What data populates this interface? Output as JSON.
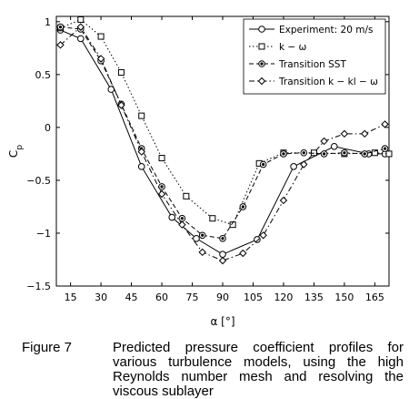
{
  "chart_data": {
    "type": "line",
    "xlabel": "α [°]",
    "ylabel": "C_p",
    "xlim": [
      8,
      172
    ],
    "ylim": [
      -1.5,
      1.05
    ],
    "x_ticks": [
      15,
      30,
      45,
      60,
      75,
      90,
      105,
      120,
      135,
      150,
      165
    ],
    "y_ticks": [
      1,
      0.5,
      0,
      -0.5,
      -1,
      -1.5
    ],
    "y_tick_labels": [
      "1",
      "0.5",
      "0",
      "−0.5",
      "−1",
      "−1.5"
    ],
    "legend_position": "top-right",
    "grid": false,
    "series": [
      {
        "name": "Experiment: 20 m/s",
        "marker": "circle",
        "line": "solid",
        "x": [
          10,
          20,
          35,
          50,
          65,
          77,
          90,
          107,
          125,
          145,
          162,
          170
        ],
        "y": [
          0.92,
          0.84,
          0.36,
          -0.37,
          -0.85,
          -1.05,
          -1.2,
          -1.06,
          -0.37,
          -0.18,
          -0.25,
          -0.25
        ]
      },
      {
        "name": "k − ω",
        "marker": "square",
        "line": "dotted",
        "x": [
          10,
          20,
          30,
          40,
          50,
          60,
          72,
          85,
          95,
          108,
          120,
          135,
          150,
          165,
          172
        ],
        "y": [
          0.94,
          1.02,
          0.86,
          0.52,
          0.11,
          -0.29,
          -0.65,
          -0.86,
          -0.92,
          -0.34,
          -0.24,
          -0.24,
          -0.25,
          -0.24,
          -0.25
        ]
      },
      {
        "name": "Transition SST",
        "marker": "circle-dot",
        "line": "dashed",
        "x": [
          10,
          20,
          30,
          40,
          50,
          60,
          70,
          80,
          90,
          100,
          110,
          120,
          130,
          140,
          150,
          160,
          170
        ],
        "y": [
          0.95,
          0.93,
          0.63,
          0.22,
          -0.2,
          -0.56,
          -0.86,
          -1.02,
          -1.05,
          -0.75,
          -0.35,
          -0.25,
          -0.24,
          -0.25,
          -0.24,
          -0.25,
          -0.2
        ]
      },
      {
        "name": "Transition k − kl − ω",
        "marker": "diamond",
        "line": "dash-dot",
        "x": [
          10,
          20,
          30,
          40,
          50,
          60,
          70,
          80,
          90,
          100,
          110,
          120,
          130,
          140,
          150,
          160,
          170
        ],
        "y": [
          0.78,
          0.95,
          0.65,
          0.21,
          -0.23,
          -0.63,
          -0.92,
          -1.18,
          -1.26,
          -1.19,
          -1.02,
          -0.69,
          -0.35,
          -0.13,
          -0.06,
          -0.06,
          0.03
        ]
      }
    ]
  },
  "caption": {
    "figure_label": "Figure 7",
    "text": "Predicted pressure coefficient profiles for various turbulence models, using the high Reynolds number mesh and resolving the viscous sublayer"
  }
}
